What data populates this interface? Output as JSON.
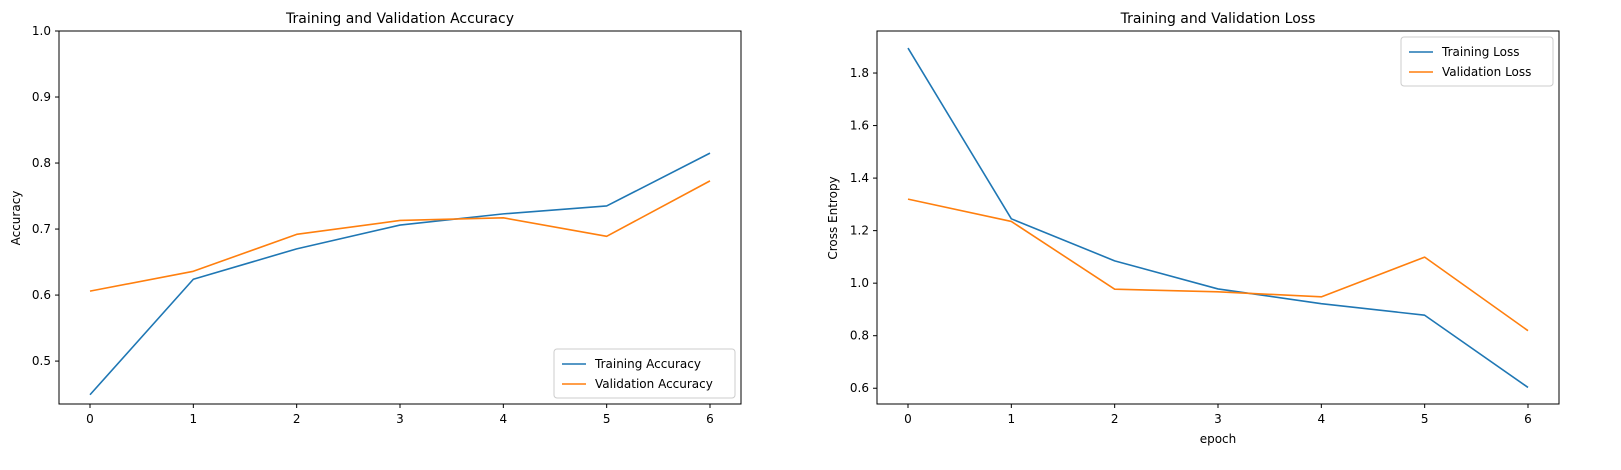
{
  "colors": {
    "series_a": "#1f77b4",
    "series_b": "#ff7f0e"
  },
  "chart_data": [
    {
      "type": "line",
      "title": "Training and Validation Accuracy",
      "xlabel": "",
      "ylabel": "Accuracy",
      "x": [
        0,
        1,
        2,
        3,
        4,
        5,
        6
      ],
      "xticks": [
        "0",
        "1",
        "2",
        "3",
        "4",
        "5",
        "6"
      ],
      "yticks": [
        "0.5",
        "0.6",
        "0.7",
        "0.8",
        "0.9",
        "1.0"
      ],
      "ytick_values": [
        0.5,
        0.6,
        0.7,
        0.8,
        0.9,
        1.0
      ],
      "xlim": [
        -0.3,
        6.3
      ],
      "ylim": [
        0.435,
        1.0
      ],
      "grid": false,
      "legend": "lower right",
      "series": [
        {
          "name": "Training Accuracy",
          "values": [
            0.449,
            0.624,
            0.67,
            0.706,
            0.723,
            0.735,
            0.815
          ]
        },
        {
          "name": "Validation Accuracy",
          "values": [
            0.606,
            0.636,
            0.692,
            0.713,
            0.717,
            0.689,
            0.773
          ]
        }
      ]
    },
    {
      "type": "line",
      "title": "Training and Validation Loss",
      "xlabel": "epoch",
      "ylabel": "Cross Entropy",
      "x": [
        0,
        1,
        2,
        3,
        4,
        5,
        6
      ],
      "xticks": [
        "0",
        "1",
        "2",
        "3",
        "4",
        "5",
        "6"
      ],
      "yticks": [
        "0.6",
        "0.8",
        "1.0",
        "1.2",
        "1.4",
        "1.6",
        "1.8"
      ],
      "ytick_values": [
        0.6,
        0.8,
        1.0,
        1.2,
        1.4,
        1.6,
        1.8
      ],
      "xlim": [
        -0.3,
        6.3
      ],
      "ylim": [
        0.54,
        1.96
      ],
      "grid": false,
      "legend": "upper right",
      "series": [
        {
          "name": "Training Loss",
          "values": [
            1.895,
            1.245,
            1.085,
            0.978,
            0.922,
            0.878,
            0.603
          ]
        },
        {
          "name": "Validation Loss",
          "values": [
            1.32,
            1.235,
            0.977,
            0.967,
            0.948,
            1.099,
            0.819
          ]
        }
      ]
    }
  ]
}
